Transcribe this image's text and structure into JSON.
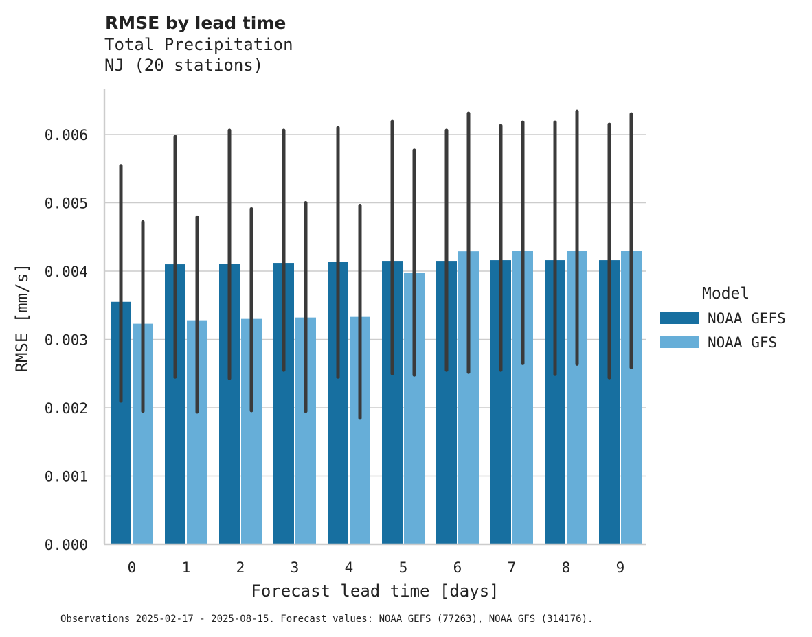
{
  "chart_data": {
    "type": "bar",
    "title": "RMSE by lead time",
    "subtitle_lines": [
      "Total Precipitation",
      "NJ (20 stations)"
    ],
    "xlabel": "Forecast lead time [days]",
    "ylabel": "RMSE [mm/s]",
    "categories": [
      "0",
      "1",
      "2",
      "3",
      "4",
      "5",
      "6",
      "7",
      "8",
      "9"
    ],
    "ylim": [
      0,
      0.0066
    ],
    "yticks": [
      0.0,
      0.001,
      0.002,
      0.003,
      0.004,
      0.005,
      0.006
    ],
    "ytick_labels": [
      "0.000",
      "0.001",
      "0.002",
      "0.003",
      "0.004",
      "0.005",
      "0.006"
    ],
    "grid": "horizontal",
    "legend": {
      "title": "Model",
      "placement": "right"
    },
    "series": [
      {
        "name": "NOAA GEFS",
        "color": "#176fa0",
        "values": [
          0.00355,
          0.0041,
          0.00411,
          0.00412,
          0.00414,
          0.00415,
          0.00415,
          0.00416,
          0.00416,
          0.00416
        ],
        "err_low": [
          0.0021,
          0.00245,
          0.00243,
          0.00255,
          0.00245,
          0.0025,
          0.00255,
          0.00255,
          0.00249,
          0.00244
        ],
        "err_high": [
          0.00554,
          0.00597,
          0.00606,
          0.00606,
          0.0061,
          0.00619,
          0.00606,
          0.00613,
          0.00618,
          0.00615
        ]
      },
      {
        "name": "NOAA GFS",
        "color": "#66aed8",
        "values": [
          0.00323,
          0.00328,
          0.0033,
          0.00332,
          0.00333,
          0.00398,
          0.00429,
          0.0043,
          0.0043,
          0.0043
        ],
        "err_low": [
          0.00195,
          0.00194,
          0.00196,
          0.00195,
          0.00185,
          0.00248,
          0.00252,
          0.00265,
          0.00264,
          0.00259
        ],
        "err_high": [
          0.00472,
          0.00479,
          0.00491,
          0.005,
          0.00496,
          0.00577,
          0.00631,
          0.00618,
          0.00634,
          0.0063
        ]
      }
    ],
    "footnote": "Observations 2025-02-17 - 2025-08-15. Forecast values: NOAA GEFS (77263), NOAA GFS (314176)."
  }
}
